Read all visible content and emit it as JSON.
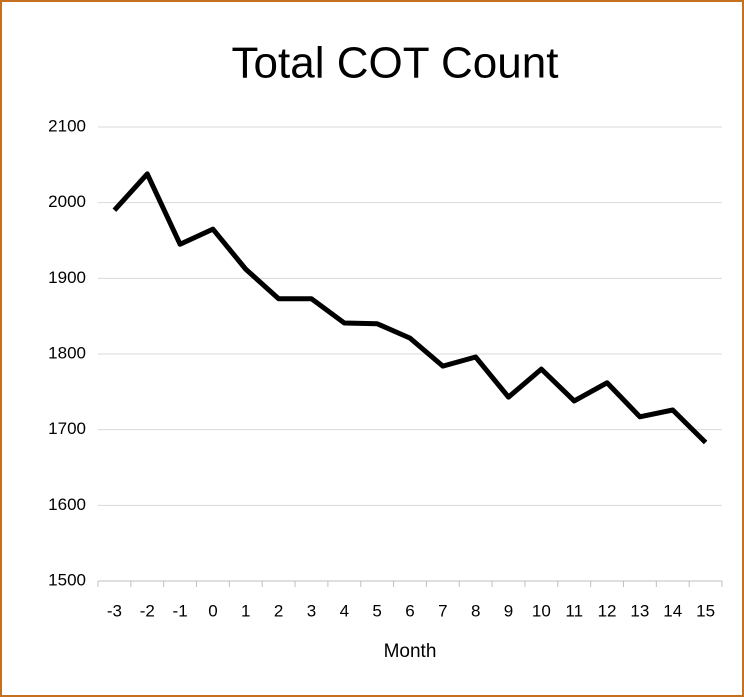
{
  "chart_data": {
    "type": "line",
    "title": "Total COT Count",
    "x_label": "Month",
    "categories": [
      "-3",
      "-2",
      "-1",
      "0",
      "1",
      "2",
      "3",
      "4",
      "5",
      "6",
      "7",
      "8",
      "9",
      "10",
      "11",
      "12",
      "13",
      "14",
      "15"
    ],
    "series": [
      {
        "name": "Total COT Count",
        "color": "#000000",
        "values": [
          1990,
          2038,
          1945,
          1965,
          1912,
          1873,
          1873,
          1841,
          1840,
          1821,
          1784,
          1796,
          1743,
          1780,
          1738,
          1762,
          1717,
          1726,
          1683
        ]
      }
    ],
    "ylim": [
      1500,
      2100
    ],
    "yticks": [
      1500,
      1600,
      1700,
      1800,
      1900,
      2000,
      2100
    ],
    "grid": true,
    "legend": false
  }
}
